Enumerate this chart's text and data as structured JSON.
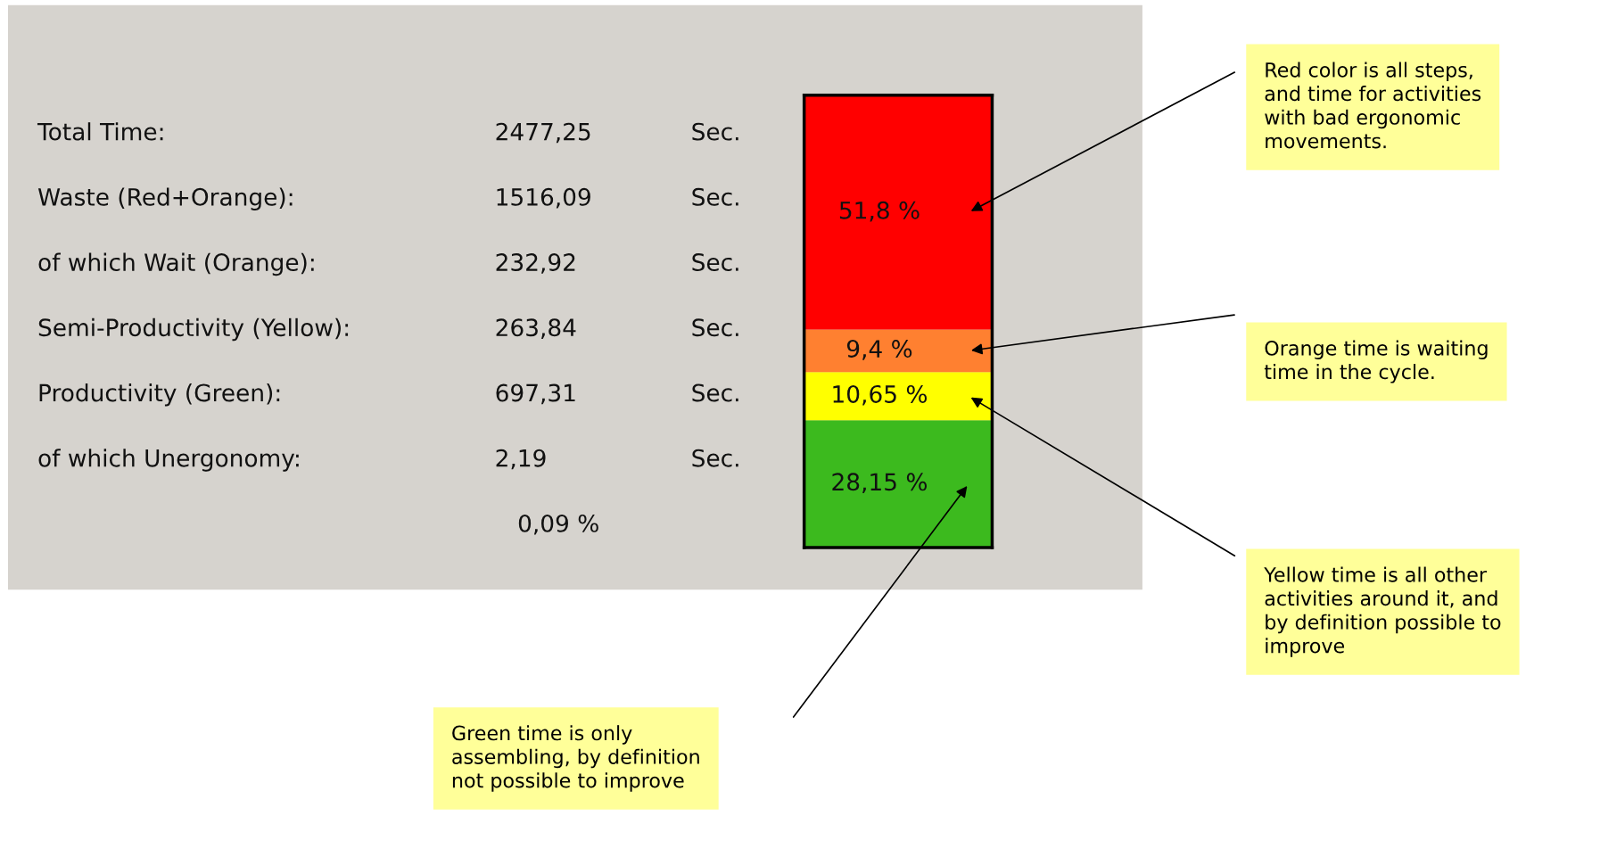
{
  "chart_data": [
    {
      "type": "other",
      "annotations": [
        "Total Time:",
        "2477,25",
        "Sec.",
        "Waste (Red+Orange):",
        "1516,09",
        "Sec.",
        "of which Wait (Orange):",
        "232,92",
        "Sec.",
        "Semi-Productivity (Yellow):",
        "263,84",
        "Sec.",
        "Productivity (Green):",
        "697,31",
        "Sec.",
        "of which Unergonomy:",
        "2,19",
        "Sec.",
        "0,09 %"
      ]
    },
    {
      "type": "bar",
      "stacked": true,
      "categories": [
        null
      ],
      "series": [
        {
          "color": "#3cba1e",
          "values": [
            28.15
          ],
          "value_labels": [
            "28,15 %"
          ]
        },
        {
          "color": "#ffff00",
          "values": [
            10.65
          ],
          "value_labels": [
            "10,65 %"
          ]
        },
        {
          "color": "#ff8030",
          "values": [
            9.4
          ],
          "value_labels": [
            "9,4 %"
          ]
        },
        {
          "color": "#ff0000",
          "values": [
            51.8
          ],
          "value_labels": [
            "51,8 %"
          ]
        }
      ],
      "annotations": [
        "Red color is all steps,\nand time for activities\nwith bad ergonomic\nmovements.",
        "Orange time is waiting\ntime in the cycle.",
        "Yellow time is all other\nactivities around it, and\nby definition possible to\nimprove",
        "Green time is only\nassembling, by definition\nnot possible to improve"
      ]
    }
  ]
}
